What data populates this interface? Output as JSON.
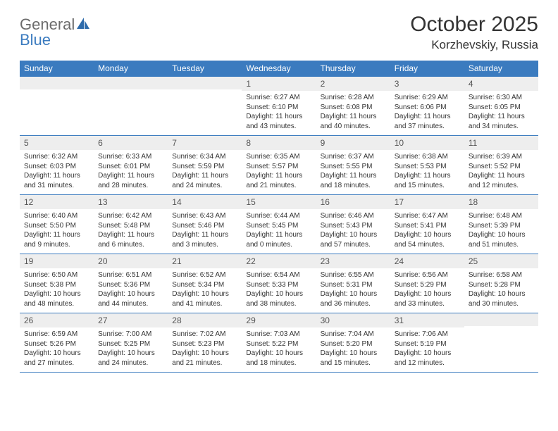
{
  "logo": {
    "word1": "General",
    "word2": "Blue"
  },
  "title": "October 2025",
  "location": "Korzhevskiy, Russia",
  "colors": {
    "header_bg": "#3b7bbf",
    "header_text": "#ffffff",
    "daynum_bg": "#eeeeee",
    "text": "#333333",
    "rule": "#3b7bbf"
  },
  "font": {
    "family": "Arial",
    "title_size": 30,
    "location_size": 17,
    "dow_size": 12,
    "daynum_size": 12,
    "detail_size": 10
  },
  "dow": [
    "Sunday",
    "Monday",
    "Tuesday",
    "Wednesday",
    "Thursday",
    "Friday",
    "Saturday"
  ],
  "weeks": [
    [
      {
        "n": "",
        "sr": "",
        "ss": "",
        "dl": ""
      },
      {
        "n": "",
        "sr": "",
        "ss": "",
        "dl": ""
      },
      {
        "n": "",
        "sr": "",
        "ss": "",
        "dl": ""
      },
      {
        "n": "1",
        "sr": "6:27 AM",
        "ss": "6:10 PM",
        "dl": "11 hours and 43 minutes."
      },
      {
        "n": "2",
        "sr": "6:28 AM",
        "ss": "6:08 PM",
        "dl": "11 hours and 40 minutes."
      },
      {
        "n": "3",
        "sr": "6:29 AM",
        "ss": "6:06 PM",
        "dl": "11 hours and 37 minutes."
      },
      {
        "n": "4",
        "sr": "6:30 AM",
        "ss": "6:05 PM",
        "dl": "11 hours and 34 minutes."
      }
    ],
    [
      {
        "n": "5",
        "sr": "6:32 AM",
        "ss": "6:03 PM",
        "dl": "11 hours and 31 minutes."
      },
      {
        "n": "6",
        "sr": "6:33 AM",
        "ss": "6:01 PM",
        "dl": "11 hours and 28 minutes."
      },
      {
        "n": "7",
        "sr": "6:34 AM",
        "ss": "5:59 PM",
        "dl": "11 hours and 24 minutes."
      },
      {
        "n": "8",
        "sr": "6:35 AM",
        "ss": "5:57 PM",
        "dl": "11 hours and 21 minutes."
      },
      {
        "n": "9",
        "sr": "6:37 AM",
        "ss": "5:55 PM",
        "dl": "11 hours and 18 minutes."
      },
      {
        "n": "10",
        "sr": "6:38 AM",
        "ss": "5:53 PM",
        "dl": "11 hours and 15 minutes."
      },
      {
        "n": "11",
        "sr": "6:39 AM",
        "ss": "5:52 PM",
        "dl": "11 hours and 12 minutes."
      }
    ],
    [
      {
        "n": "12",
        "sr": "6:40 AM",
        "ss": "5:50 PM",
        "dl": "11 hours and 9 minutes."
      },
      {
        "n": "13",
        "sr": "6:42 AM",
        "ss": "5:48 PM",
        "dl": "11 hours and 6 minutes."
      },
      {
        "n": "14",
        "sr": "6:43 AM",
        "ss": "5:46 PM",
        "dl": "11 hours and 3 minutes."
      },
      {
        "n": "15",
        "sr": "6:44 AM",
        "ss": "5:45 PM",
        "dl": "11 hours and 0 minutes."
      },
      {
        "n": "16",
        "sr": "6:46 AM",
        "ss": "5:43 PM",
        "dl": "10 hours and 57 minutes."
      },
      {
        "n": "17",
        "sr": "6:47 AM",
        "ss": "5:41 PM",
        "dl": "10 hours and 54 minutes."
      },
      {
        "n": "18",
        "sr": "6:48 AM",
        "ss": "5:39 PM",
        "dl": "10 hours and 51 minutes."
      }
    ],
    [
      {
        "n": "19",
        "sr": "6:50 AM",
        "ss": "5:38 PM",
        "dl": "10 hours and 48 minutes."
      },
      {
        "n": "20",
        "sr": "6:51 AM",
        "ss": "5:36 PM",
        "dl": "10 hours and 44 minutes."
      },
      {
        "n": "21",
        "sr": "6:52 AM",
        "ss": "5:34 PM",
        "dl": "10 hours and 41 minutes."
      },
      {
        "n": "22",
        "sr": "6:54 AM",
        "ss": "5:33 PM",
        "dl": "10 hours and 38 minutes."
      },
      {
        "n": "23",
        "sr": "6:55 AM",
        "ss": "5:31 PM",
        "dl": "10 hours and 36 minutes."
      },
      {
        "n": "24",
        "sr": "6:56 AM",
        "ss": "5:29 PM",
        "dl": "10 hours and 33 minutes."
      },
      {
        "n": "25",
        "sr": "6:58 AM",
        "ss": "5:28 PM",
        "dl": "10 hours and 30 minutes."
      }
    ],
    [
      {
        "n": "26",
        "sr": "6:59 AM",
        "ss": "5:26 PM",
        "dl": "10 hours and 27 minutes."
      },
      {
        "n": "27",
        "sr": "7:00 AM",
        "ss": "5:25 PM",
        "dl": "10 hours and 24 minutes."
      },
      {
        "n": "28",
        "sr": "7:02 AM",
        "ss": "5:23 PM",
        "dl": "10 hours and 21 minutes."
      },
      {
        "n": "29",
        "sr": "7:03 AM",
        "ss": "5:22 PM",
        "dl": "10 hours and 18 minutes."
      },
      {
        "n": "30",
        "sr": "7:04 AM",
        "ss": "5:20 PM",
        "dl": "10 hours and 15 minutes."
      },
      {
        "n": "31",
        "sr": "7:06 AM",
        "ss": "5:19 PM",
        "dl": "10 hours and 12 minutes."
      },
      {
        "n": "",
        "sr": "",
        "ss": "",
        "dl": ""
      }
    ]
  ],
  "labels": {
    "sunrise": "Sunrise:",
    "sunset": "Sunset:",
    "daylight": "Daylight:"
  }
}
